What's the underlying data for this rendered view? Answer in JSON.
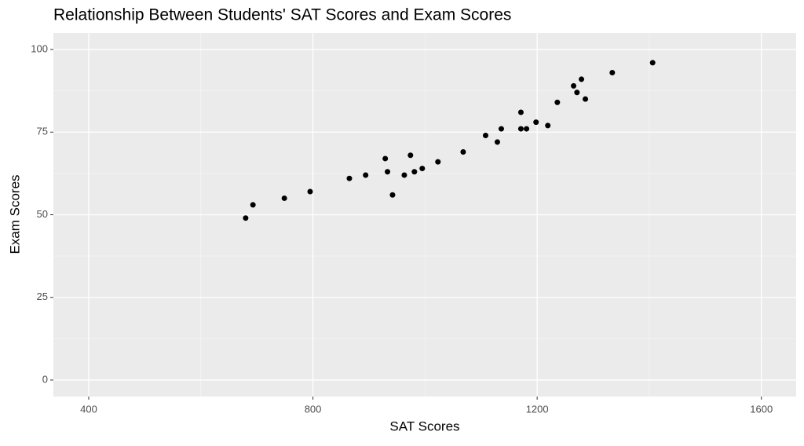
{
  "chart_data": {
    "type": "scatter",
    "title": "Relationship Between Students' SAT Scores and Exam Scores",
    "xlabel": "SAT Scores",
    "ylabel": "Exam Scores",
    "x": [
      680,
      693,
      749,
      795,
      865,
      894,
      929,
      933,
      942,
      963,
      974,
      981,
      995,
      1023,
      1068,
      1108,
      1129,
      1136,
      1171,
      1171,
      1181,
      1198,
      1219,
      1236,
      1265,
      1271,
      1279,
      1286,
      1334,
      1406
    ],
    "values": [
      49,
      53,
      55,
      57,
      61,
      62,
      67,
      63,
      56,
      62,
      68,
      63,
      64,
      66,
      69,
      74,
      72,
      76,
      81,
      76,
      76,
      78,
      77,
      84,
      89,
      87,
      91,
      85,
      93,
      96
    ],
    "color": "#000000",
    "xlim": [
      337,
      1662
    ],
    "xticks": [
      400,
      800,
      1200,
      1600
    ],
    "ylim": [
      -5,
      105
    ],
    "yticks": [
      0,
      25,
      50,
      75,
      100
    ],
    "grid": true,
    "minor_grid": true
  }
}
